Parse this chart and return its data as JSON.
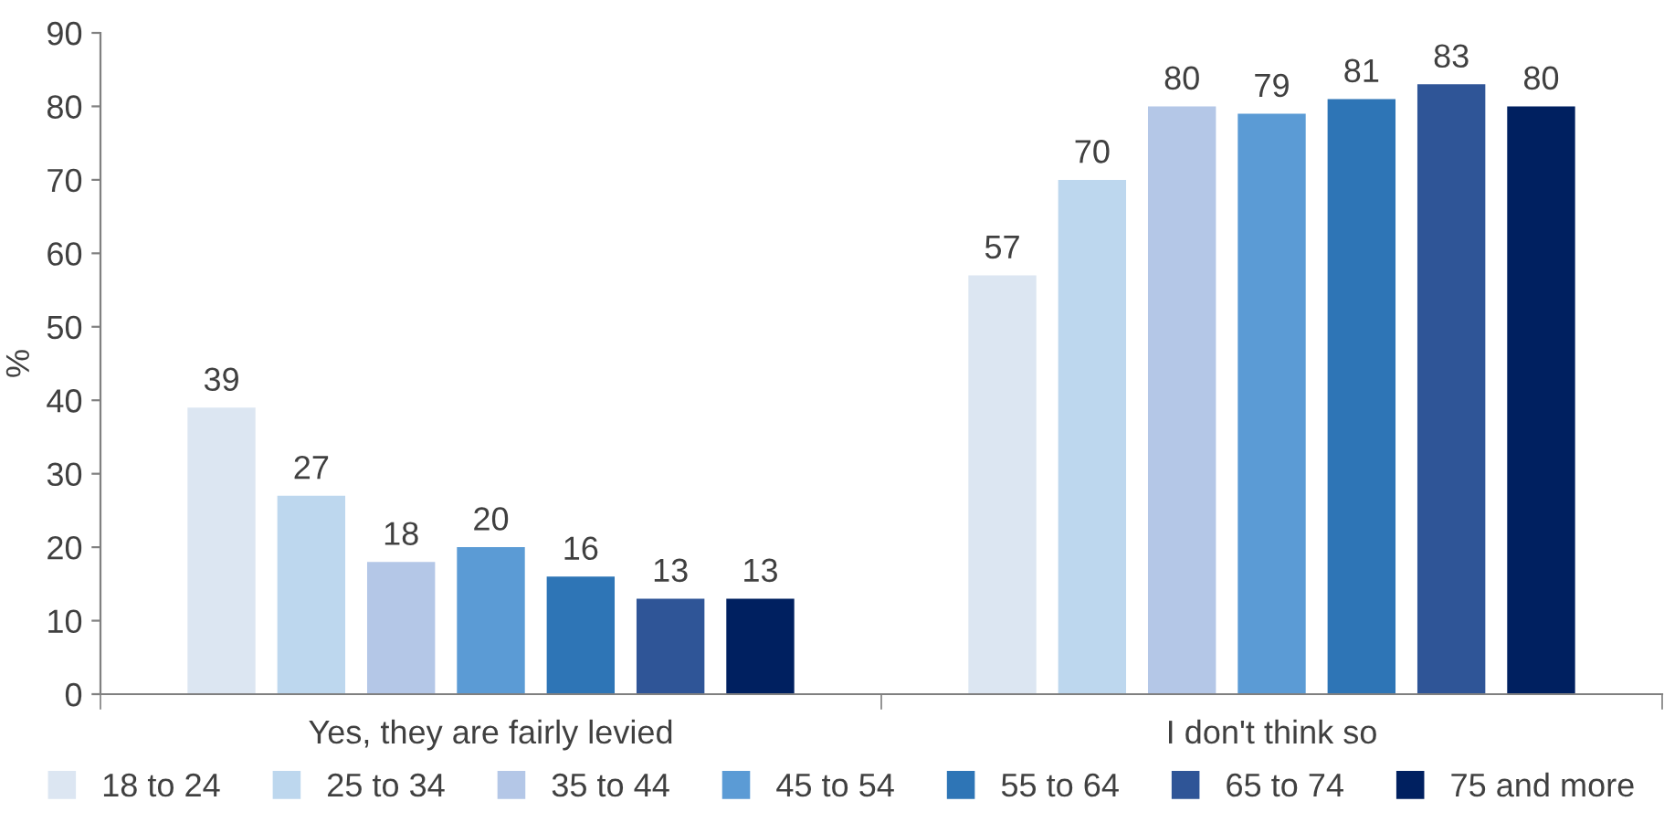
{
  "chart_data": {
    "type": "bar",
    "ylabel": "%",
    "categories": [
      "Yes, they are fairly levied",
      "I don't think so"
    ],
    "series": [
      {
        "name": "18 to 24",
        "color": "#dce6f2",
        "values": [
          39,
          57
        ]
      },
      {
        "name": "25 to 34",
        "color": "#bdd7ee",
        "values": [
          27,
          70
        ]
      },
      {
        "name": "35 to 44",
        "color": "#b4c7e7",
        "values": [
          18,
          80
        ]
      },
      {
        "name": "45 to 54",
        "color": "#5b9bd5",
        "values": [
          20,
          79
        ]
      },
      {
        "name": "55 to 64",
        "color": "#2e75b6",
        "values": [
          16,
          81
        ]
      },
      {
        "name": "65 to 74",
        "color": "#2f5597",
        "values": [
          13,
          83
        ]
      },
      {
        "name": "75 and more",
        "color": "#002060",
        "values": [
          13,
          80
        ]
      }
    ],
    "ylim": [
      0,
      90
    ],
    "yticks": [
      0,
      10,
      20,
      30,
      40,
      50,
      60,
      70,
      80,
      90
    ],
    "data_labels": true,
    "grid": false,
    "legend": "bottom"
  }
}
